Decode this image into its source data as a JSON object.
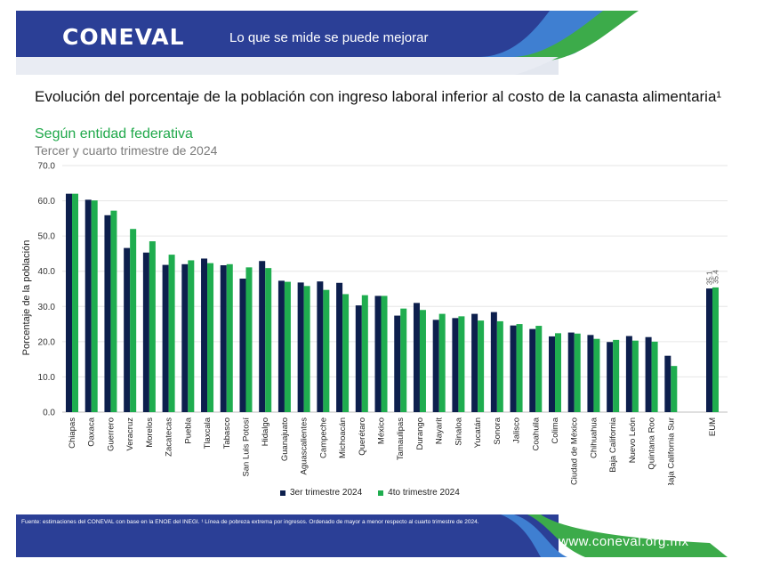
{
  "header": {
    "logo": "CONEVAL",
    "tagline": "Lo que se mide se puede mejorar"
  },
  "titles": {
    "title": "Evolución del porcentaje de la población con ingreso laboral inferior al costo de la canasta alimentaria¹",
    "subtitle": "Según entidad federativa",
    "period": "Tercer y cuarto trimestre de 2024"
  },
  "chart_data": {
    "type": "bar",
    "ylabel": "Porcentaje de la población",
    "xlabel": "",
    "ylim": [
      0,
      70
    ],
    "yticks": [
      "0.0",
      "10.0",
      "20.0",
      "30.0",
      "40.0",
      "50.0",
      "60.0",
      "70.0"
    ],
    "grid": true,
    "legend_position": "bottom",
    "categories": [
      "Chiapas",
      "Oaxaca",
      "Guerrero",
      "Veracruz",
      "Morelos",
      "Zacatecas",
      "Puebla",
      "Tlaxcala",
      "Tabasco",
      "San Luis Potosí",
      "Hidalgo",
      "Guanajuato",
      "Aguascalientes",
      "Campeche",
      "Michoacán",
      "Querétaro",
      "México",
      "Tamaulipas",
      "Durango",
      "Nayarit",
      "Sinaloa",
      "Yucatán",
      "Sonora",
      "Jalisco",
      "Coahuila",
      "Colima",
      "Ciudad de México",
      "Chihuahua",
      "Baja California",
      "Nuevo León",
      "Quintana Roo",
      "Baja California Sur",
      "EUM"
    ],
    "series": [
      {
        "name": "3er trimestre 2024",
        "color": "#0d1f4d",
        "values": [
          62.0,
          60.3,
          55.9,
          46.6,
          45.3,
          41.8,
          42.0,
          43.6,
          41.7,
          37.9,
          42.9,
          37.3,
          36.8,
          37.1,
          36.7,
          30.3,
          33.0,
          27.4,
          31.0,
          26.2,
          26.7,
          27.9,
          28.4,
          24.6,
          23.6,
          21.5,
          22.6,
          21.9,
          19.9,
          21.6,
          21.3,
          16.0,
          35.1
        ]
      },
      {
        "name": "4to trimestre 2024",
        "color": "#1fad4f",
        "values": [
          62.0,
          60.1,
          57.2,
          52.0,
          48.5,
          44.7,
          43.1,
          42.3,
          42.0,
          41.1,
          40.9,
          37.0,
          35.8,
          34.7,
          33.5,
          33.2,
          33.0,
          29.4,
          29.0,
          27.9,
          27.2,
          26.0,
          25.8,
          25.0,
          24.5,
          22.4,
          22.3,
          20.8,
          20.5,
          20.3,
          20.0,
          13.1,
          35.4
        ]
      }
    ],
    "annotations": [
      {
        "category": "EUM",
        "series": "3er trimestre 2024",
        "text": "35.1"
      },
      {
        "category": "EUM",
        "series": "4to trimestre 2024",
        "text": "35.4"
      }
    ]
  },
  "legend": {
    "items": [
      {
        "label": "3er trimestre 2024",
        "color": "#0d1f4d"
      },
      {
        "label": "4to trimestre 2024",
        "color": "#1fad4f"
      }
    ]
  },
  "footer": {
    "source": "Fuente: estimaciones del CONEVAL con base en la ENOE del INEGI. ¹ Línea de pobreza extrema por ingresos. Ordenado de mayor a menor respecto al cuarto trimestre de 2024.",
    "website": "www.coneval.org.mx"
  },
  "colors": {
    "banner_blue": "#2b3f96",
    "banner_light_blue": "#3f7fd1",
    "banner_green": "#3cab4a"
  }
}
